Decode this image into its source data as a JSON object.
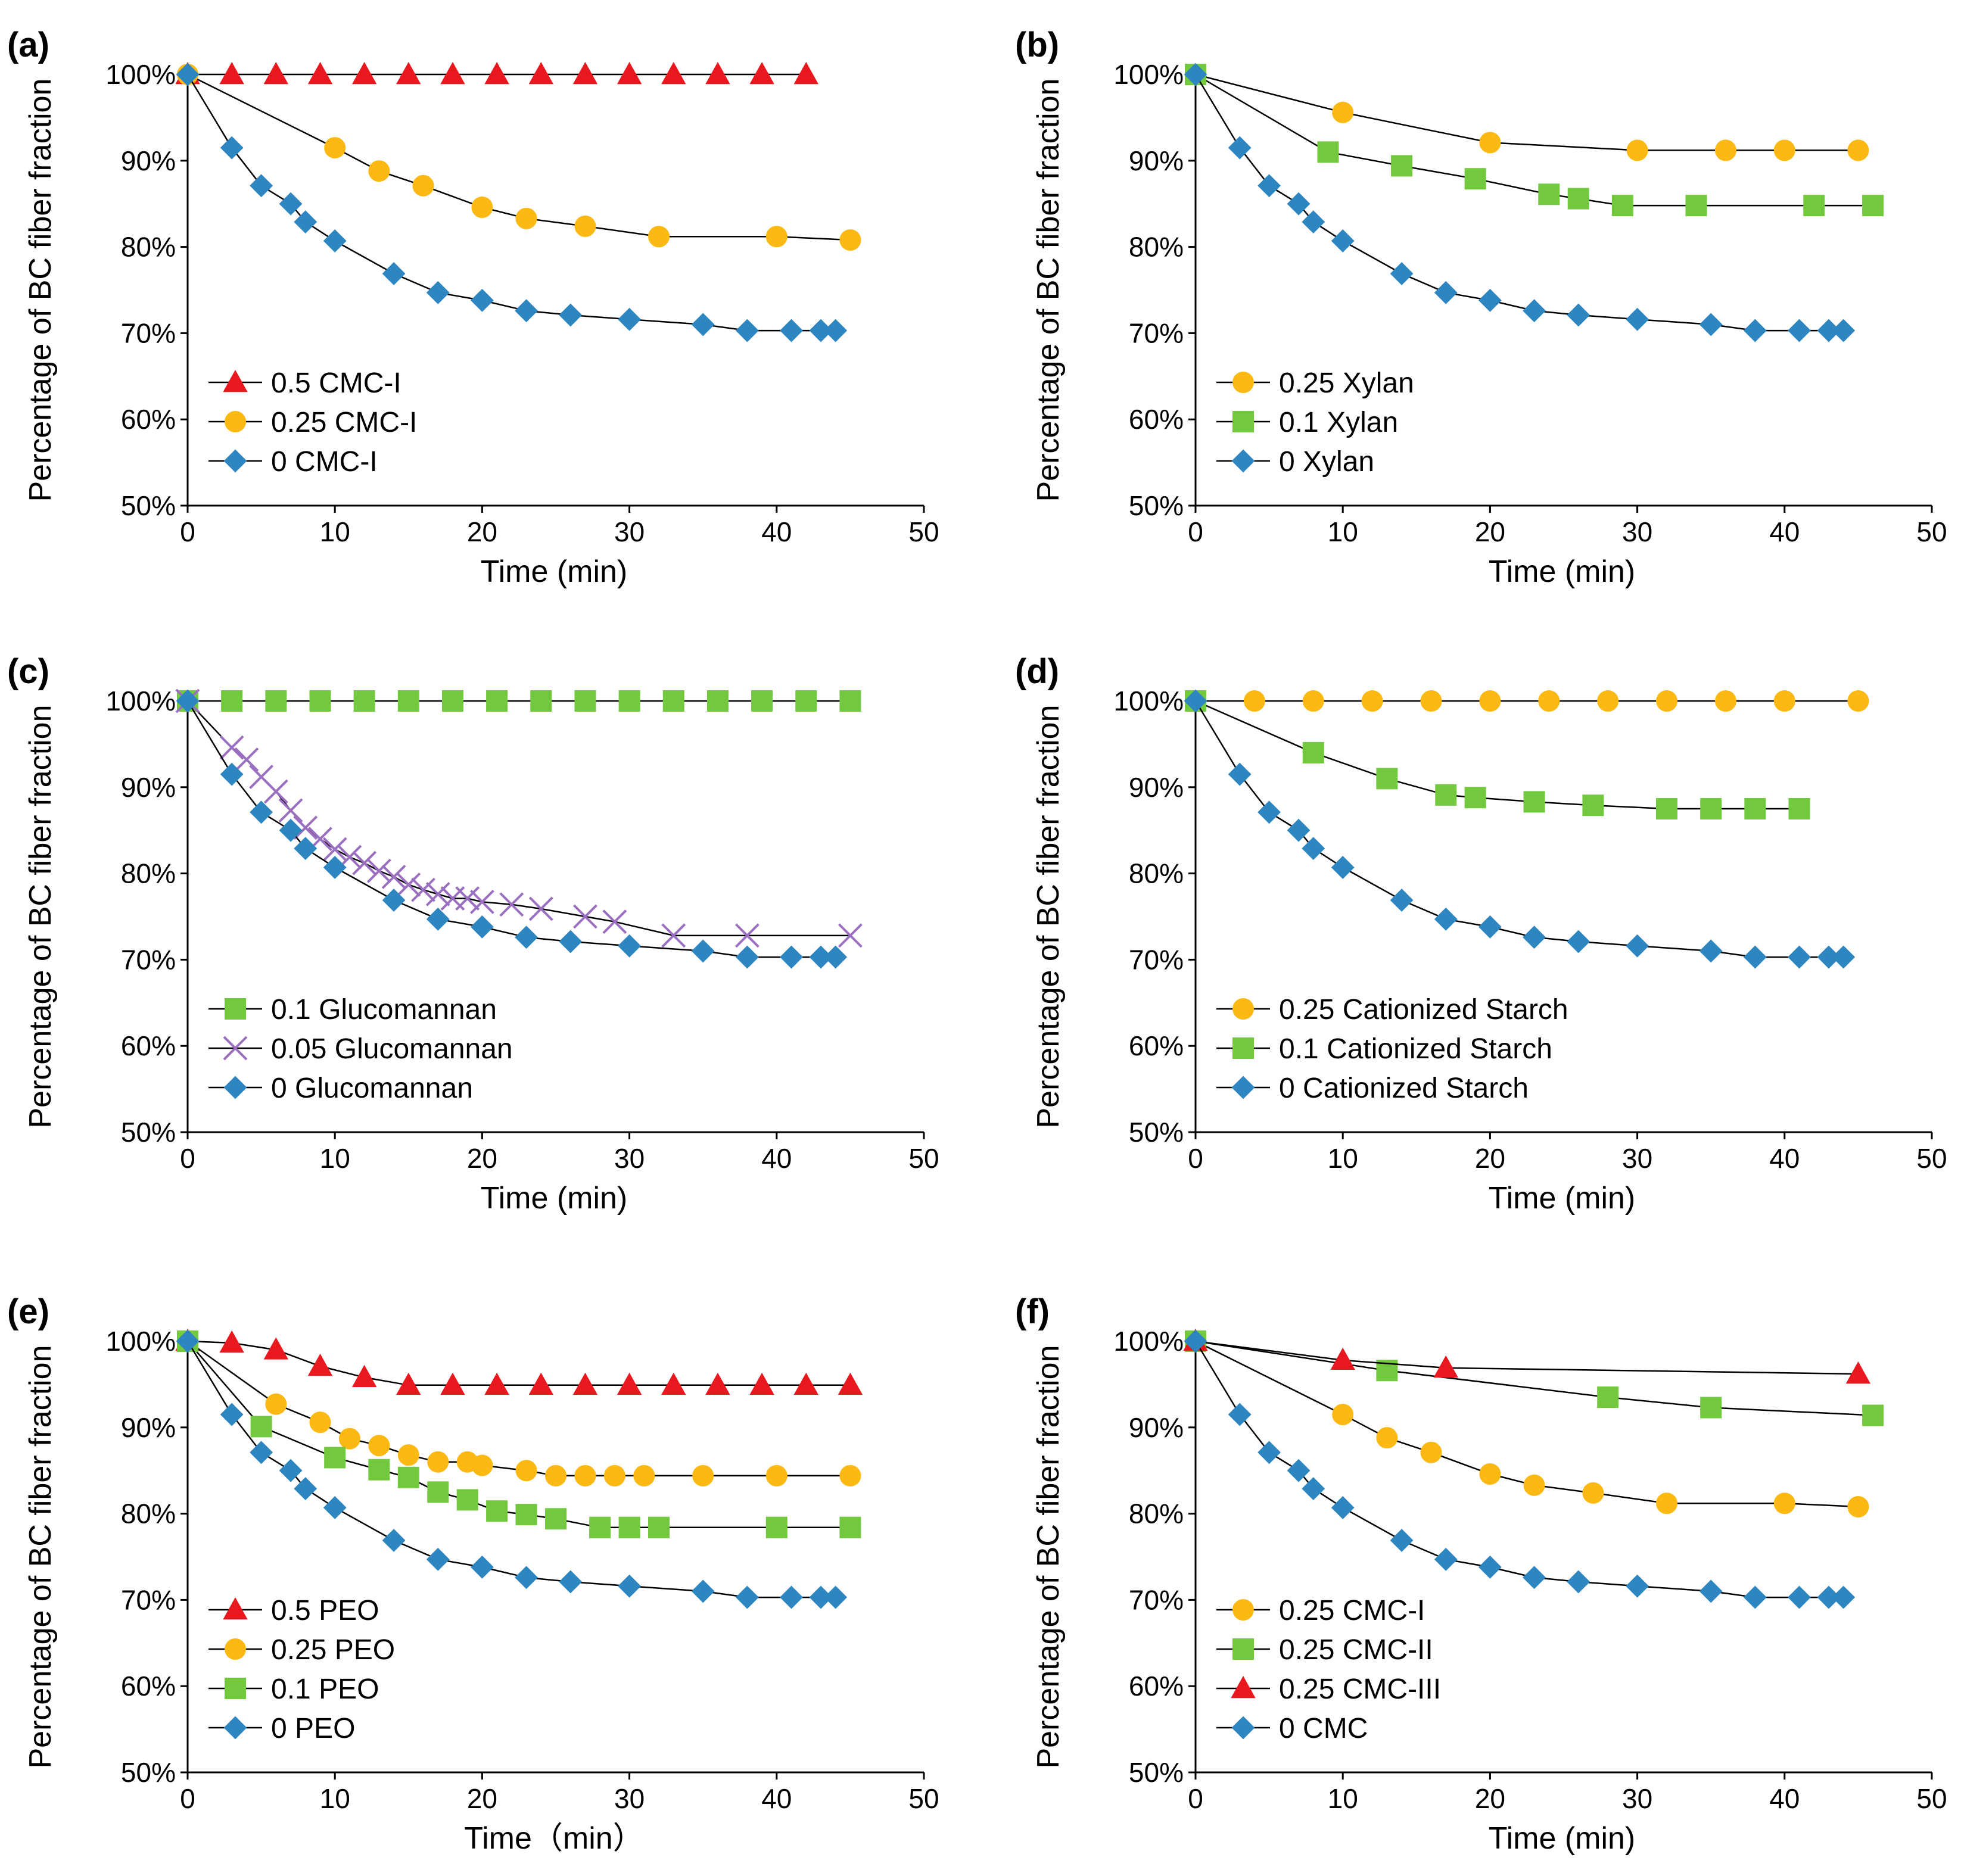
{
  "figure": {
    "panels": [
      {
        "label": "(a)",
        "xlabel": "Time (min)",
        "ylabel": "Percentage of BC fiber fraction",
        "xlim": [
          0,
          50
        ],
        "ylim": [
          50,
          100
        ],
        "xticks": [
          "0",
          "10",
          "20",
          "30",
          "40",
          "50"
        ],
        "yticks": [
          "50%",
          "60%",
          "70%",
          "80%",
          "90%",
          "100%"
        ]
      },
      {
        "label": "(b)",
        "xlabel": "Time (min)",
        "ylabel": "Percentage of BC fiber fraction",
        "xlim": [
          0,
          50
        ],
        "ylim": [
          50,
          100
        ],
        "xticks": [
          "0",
          "10",
          "20",
          "30",
          "40",
          "50"
        ],
        "yticks": [
          "50%",
          "60%",
          "70%",
          "80%",
          "90%",
          "100%"
        ]
      },
      {
        "label": "(c)",
        "xlabel": "Time (min)",
        "ylabel": "Percentage of BC fiber fraction",
        "xlim": [
          0,
          50
        ],
        "ylim": [
          50,
          100
        ],
        "xticks": [
          "0",
          "10",
          "20",
          "30",
          "40",
          "50"
        ],
        "yticks": [
          "50%",
          "60%",
          "70%",
          "80%",
          "90%",
          "100%"
        ]
      },
      {
        "label": "(d)",
        "xlabel": "Time (min)",
        "ylabel": "Percentage of BC fiber fraction",
        "xlim": [
          0,
          50
        ],
        "ylim": [
          50,
          100
        ],
        "xticks": [
          "0",
          "10",
          "20",
          "30",
          "40",
          "50"
        ],
        "yticks": [
          "50%",
          "60%",
          "70%",
          "80%",
          "90%",
          "100%"
        ]
      },
      {
        "label": "(e)",
        "xlabel": "Time（min）",
        "ylabel": "Percentage of BC fiber fraction",
        "xlim": [
          0,
          50
        ],
        "ylim": [
          50,
          100
        ],
        "xticks": [
          "0",
          "10",
          "20",
          "30",
          "40",
          "50"
        ],
        "yticks": [
          "50%",
          "60%",
          "70%",
          "80%",
          "90%",
          "100%"
        ]
      },
      {
        "label": "(f)",
        "xlabel": "Time (min)",
        "ylabel": "Percentage of BC fiber fraction",
        "xlim": [
          0,
          50
        ],
        "ylim": [
          50,
          100
        ],
        "xticks": [
          "0",
          "10",
          "20",
          "30",
          "40",
          "50"
        ],
        "yticks": [
          "50%",
          "60%",
          "70%",
          "80%",
          "90%",
          "100%"
        ]
      }
    ]
  },
  "chart_data": [
    {
      "type": "line",
      "panel": "(a)",
      "title": "",
      "xlabel": "Time (min)",
      "ylabel": "Percentage of BC fiber fraction",
      "xlim": [
        0,
        50
      ],
      "ylim": [
        50,
        100
      ],
      "legend_position": "bottom-left",
      "series": [
        {
          "name": "0.5 CMC-I",
          "marker": "triangle",
          "color": "#e8191e",
          "x": [
            0,
            3,
            6,
            9,
            12,
            15,
            18,
            21,
            24,
            27,
            30,
            33,
            36,
            39,
            42
          ],
          "y": [
            100,
            100,
            100,
            100,
            100,
            100,
            100,
            100,
            100,
            100,
            100,
            100,
            100,
            100,
            100
          ]
        },
        {
          "name": "0.25 CMC-I",
          "marker": "circle",
          "color": "#fdb913",
          "x": [
            0,
            10,
            13,
            16,
            20,
            23,
            27,
            32,
            40,
            45
          ],
          "y": [
            100,
            91.5,
            88.8,
            87.1,
            84.6,
            83.3,
            82.4,
            81.2,
            81.2,
            80.8
          ]
        },
        {
          "name": "0 CMC-I",
          "marker": "diamond",
          "color": "#2e86c1",
          "x": [
            0,
            3,
            5,
            7,
            8,
            10,
            14,
            17,
            20,
            23,
            26,
            30,
            35,
            38,
            41,
            43,
            44
          ],
          "y": [
            100,
            91.5,
            87.1,
            85.0,
            82.9,
            80.7,
            76.9,
            74.7,
            73.8,
            72.6,
            72.1,
            71.6,
            71.0,
            70.3,
            70.3,
            70.3,
            70.3
          ]
        }
      ]
    },
    {
      "type": "line",
      "panel": "(b)",
      "title": "",
      "xlabel": "Time (min)",
      "ylabel": "Percentage of BC fiber fraction",
      "xlim": [
        0,
        50
      ],
      "ylim": [
        50,
        100
      ],
      "legend_position": "bottom-left",
      "series": [
        {
          "name": "0.25 Xylan",
          "marker": "circle",
          "color": "#fdb913",
          "x": [
            0,
            10,
            20,
            30,
            36,
            40,
            45
          ],
          "y": [
            100,
            95.6,
            92.1,
            91.2,
            91.2,
            91.2,
            91.2
          ]
        },
        {
          "name": "0.1 Xylan",
          "marker": "square",
          "color": "#72c93e",
          "x": [
            0,
            9,
            14,
            19,
            24,
            26,
            29,
            34,
            42,
            46
          ],
          "y": [
            100,
            91.0,
            89.4,
            87.9,
            86.1,
            85.6,
            84.8,
            84.8,
            84.8,
            84.8
          ]
        },
        {
          "name": "0 Xylan",
          "marker": "diamond",
          "color": "#2e86c1",
          "x": [
            0,
            3,
            5,
            7,
            8,
            10,
            14,
            17,
            20,
            23,
            26,
            30,
            35,
            38,
            41,
            43,
            44
          ],
          "y": [
            100,
            91.5,
            87.1,
            85.0,
            82.9,
            80.7,
            76.9,
            74.7,
            73.8,
            72.6,
            72.1,
            71.6,
            71.0,
            70.3,
            70.3,
            70.3,
            70.3
          ]
        }
      ]
    },
    {
      "type": "line",
      "panel": "(c)",
      "title": "",
      "xlabel": "Time (min)",
      "ylabel": "Percentage of BC fiber fraction",
      "xlim": [
        0,
        50
      ],
      "ylim": [
        50,
        100
      ],
      "legend_position": "bottom-left",
      "series": [
        {
          "name": "0.1 Glucomannan",
          "marker": "square",
          "color": "#72c93e",
          "x": [
            0,
            3,
            6,
            9,
            12,
            15,
            18,
            21,
            24,
            27,
            30,
            33,
            36,
            39,
            42,
            45
          ],
          "y": [
            100,
            100,
            100,
            100,
            100,
            100,
            100,
            100,
            100,
            100,
            100,
            100,
            100,
            100,
            100,
            100
          ]
        },
        {
          "name": "0.05 Glucomannan",
          "marker": "x",
          "color": "#9a6fbf",
          "x": [
            0,
            3,
            4,
            5,
            6,
            7,
            8,
            9,
            10,
            11,
            12,
            13,
            14,
            15,
            16,
            17,
            18,
            19,
            20,
            22,
            24,
            27,
            29,
            33,
            38,
            45
          ],
          "y": [
            100,
            94.6,
            93.2,
            91.2,
            89.5,
            87.3,
            85.3,
            84.0,
            82.8,
            81.9,
            81.2,
            80.3,
            79.6,
            78.7,
            78.1,
            77.6,
            77.1,
            77.1,
            76.7,
            76.4,
            75.9,
            75.0,
            74.4,
            72.8,
            72.8,
            72.8
          ]
        },
        {
          "name": "0 Glucomannan",
          "marker": "diamond",
          "color": "#2e86c1",
          "x": [
            0,
            3,
            5,
            7,
            8,
            10,
            14,
            17,
            20,
            23,
            26,
            30,
            35,
            38,
            41,
            43,
            44
          ],
          "y": [
            100,
            91.5,
            87.1,
            85.0,
            82.9,
            80.7,
            76.9,
            74.7,
            73.8,
            72.6,
            72.1,
            71.6,
            71.0,
            70.3,
            70.3,
            70.3,
            70.3
          ]
        }
      ]
    },
    {
      "type": "line",
      "panel": "(d)",
      "title": "",
      "xlabel": "Time (min)",
      "ylabel": "Percentage of BC fiber fraction",
      "xlim": [
        0,
        50
      ],
      "ylim": [
        50,
        100
      ],
      "legend_position": "bottom-left",
      "series": [
        {
          "name": "0.25 Cationized Starch",
          "marker": "circle",
          "color": "#fdb913",
          "x": [
            0,
            4,
            8,
            12,
            16,
            20,
            24,
            28,
            32,
            36,
            40,
            45
          ],
          "y": [
            100,
            100,
            100,
            100,
            100,
            100,
            100,
            100,
            100,
            100,
            100,
            100
          ]
        },
        {
          "name": "0.1 Cationized Starch",
          "marker": "square",
          "color": "#72c93e",
          "x": [
            0,
            8,
            13,
            17,
            19,
            23,
            27,
            32,
            35,
            38,
            41
          ],
          "y": [
            100,
            94.0,
            91.0,
            89.1,
            88.8,
            88.3,
            87.9,
            87.5,
            87.5,
            87.5,
            87.5
          ]
        },
        {
          "name": "0 Cationized Starch",
          "marker": "diamond",
          "color": "#2e86c1",
          "x": [
            0,
            3,
            5,
            7,
            8,
            10,
            14,
            17,
            20,
            23,
            26,
            30,
            35,
            38,
            41,
            43,
            44
          ],
          "y": [
            100,
            91.5,
            87.1,
            85.0,
            82.9,
            80.7,
            76.9,
            74.7,
            73.8,
            72.6,
            72.1,
            71.6,
            71.0,
            70.3,
            70.3,
            70.3,
            70.3
          ]
        }
      ]
    },
    {
      "type": "line",
      "panel": "(e)",
      "title": "",
      "xlabel": "Time（min）",
      "ylabel": "Percentage of BC fiber fraction",
      "xlim": [
        0,
        50
      ],
      "ylim": [
        50,
        100
      ],
      "legend_position": "bottom-left",
      "series": [
        {
          "name": "0.5 PEO",
          "marker": "triangle",
          "color": "#e8191e",
          "x": [
            0,
            3,
            6,
            9,
            12,
            15,
            18,
            21,
            24,
            27,
            30,
            33,
            36,
            39,
            42,
            45
          ],
          "y": [
            100,
            99.8,
            99.0,
            97.1,
            95.8,
            94.9,
            94.9,
            94.9,
            94.9,
            94.9,
            94.9,
            94.9,
            94.9,
            94.9,
            94.9,
            94.9
          ]
        },
        {
          "name": "0.25 PEO",
          "marker": "circle",
          "color": "#fdb913",
          "x": [
            0,
            6,
            9,
            11,
            13,
            15,
            17,
            19,
            20,
            23,
            25,
            27,
            29,
            31,
            35,
            40,
            45
          ],
          "y": [
            100,
            92.7,
            90.6,
            88.7,
            87.9,
            86.8,
            86.0,
            86.0,
            85.6,
            85.0,
            84.4,
            84.4,
            84.4,
            84.4,
            84.4,
            84.4,
            84.4
          ]
        },
        {
          "name": "0.1 PEO",
          "marker": "square",
          "color": "#72c93e",
          "x": [
            0,
            5,
            10,
            13,
            15,
            17,
            19,
            21,
            23,
            25,
            28,
            30,
            32,
            40,
            45
          ],
          "y": [
            100,
            90.1,
            86.5,
            85.1,
            84.2,
            82.5,
            81.6,
            80.3,
            79.9,
            79.4,
            78.4,
            78.4,
            78.4,
            78.4,
            78.4
          ]
        },
        {
          "name": "0 PEO",
          "marker": "diamond",
          "color": "#2e86c1",
          "x": [
            0,
            3,
            5,
            7,
            8,
            10,
            14,
            17,
            20,
            23,
            26,
            30,
            35,
            38,
            41,
            43,
            44
          ],
          "y": [
            100,
            91.5,
            87.1,
            85.0,
            82.9,
            80.7,
            76.9,
            74.7,
            73.8,
            72.6,
            72.1,
            71.6,
            71.0,
            70.3,
            70.3,
            70.3,
            70.3
          ]
        }
      ]
    },
    {
      "type": "line",
      "panel": "(f)",
      "title": "",
      "xlabel": "Time (min)",
      "ylabel": "Percentage of BC fiber fraction",
      "xlim": [
        0,
        50
      ],
      "ylim": [
        50,
        100
      ],
      "legend_position": "bottom-left",
      "series": [
        {
          "name": "0.25 CMC-I",
          "marker": "circle",
          "color": "#fdb913",
          "x": [
            0,
            10,
            13,
            16,
            20,
            23,
            27,
            32,
            40,
            45
          ],
          "y": [
            100,
            91.5,
            88.8,
            87.1,
            84.6,
            83.3,
            82.4,
            81.2,
            81.2,
            80.8
          ]
        },
        {
          "name": "0.25 CMC-II",
          "marker": "square",
          "color": "#72c93e",
          "x": [
            0,
            13,
            28,
            35,
            46
          ],
          "y": [
            100,
            96.6,
            93.5,
            92.3,
            91.4
          ]
        },
        {
          "name": "0.25 CMC-III",
          "marker": "triangle",
          "color": "#e8191e",
          "x": [
            0,
            10,
            17,
            45
          ],
          "y": [
            100,
            97.8,
            96.9,
            96.2
          ]
        },
        {
          "name": "0 CMC",
          "marker": "diamond",
          "color": "#2e86c1",
          "x": [
            0,
            3,
            5,
            7,
            8,
            10,
            14,
            17,
            20,
            23,
            26,
            30,
            35,
            38,
            41,
            43,
            44
          ],
          "y": [
            100,
            91.5,
            87.1,
            85.0,
            82.9,
            80.7,
            76.9,
            74.7,
            73.8,
            72.6,
            72.1,
            71.6,
            71.0,
            70.3,
            70.3,
            70.3,
            70.3
          ]
        }
      ]
    }
  ]
}
